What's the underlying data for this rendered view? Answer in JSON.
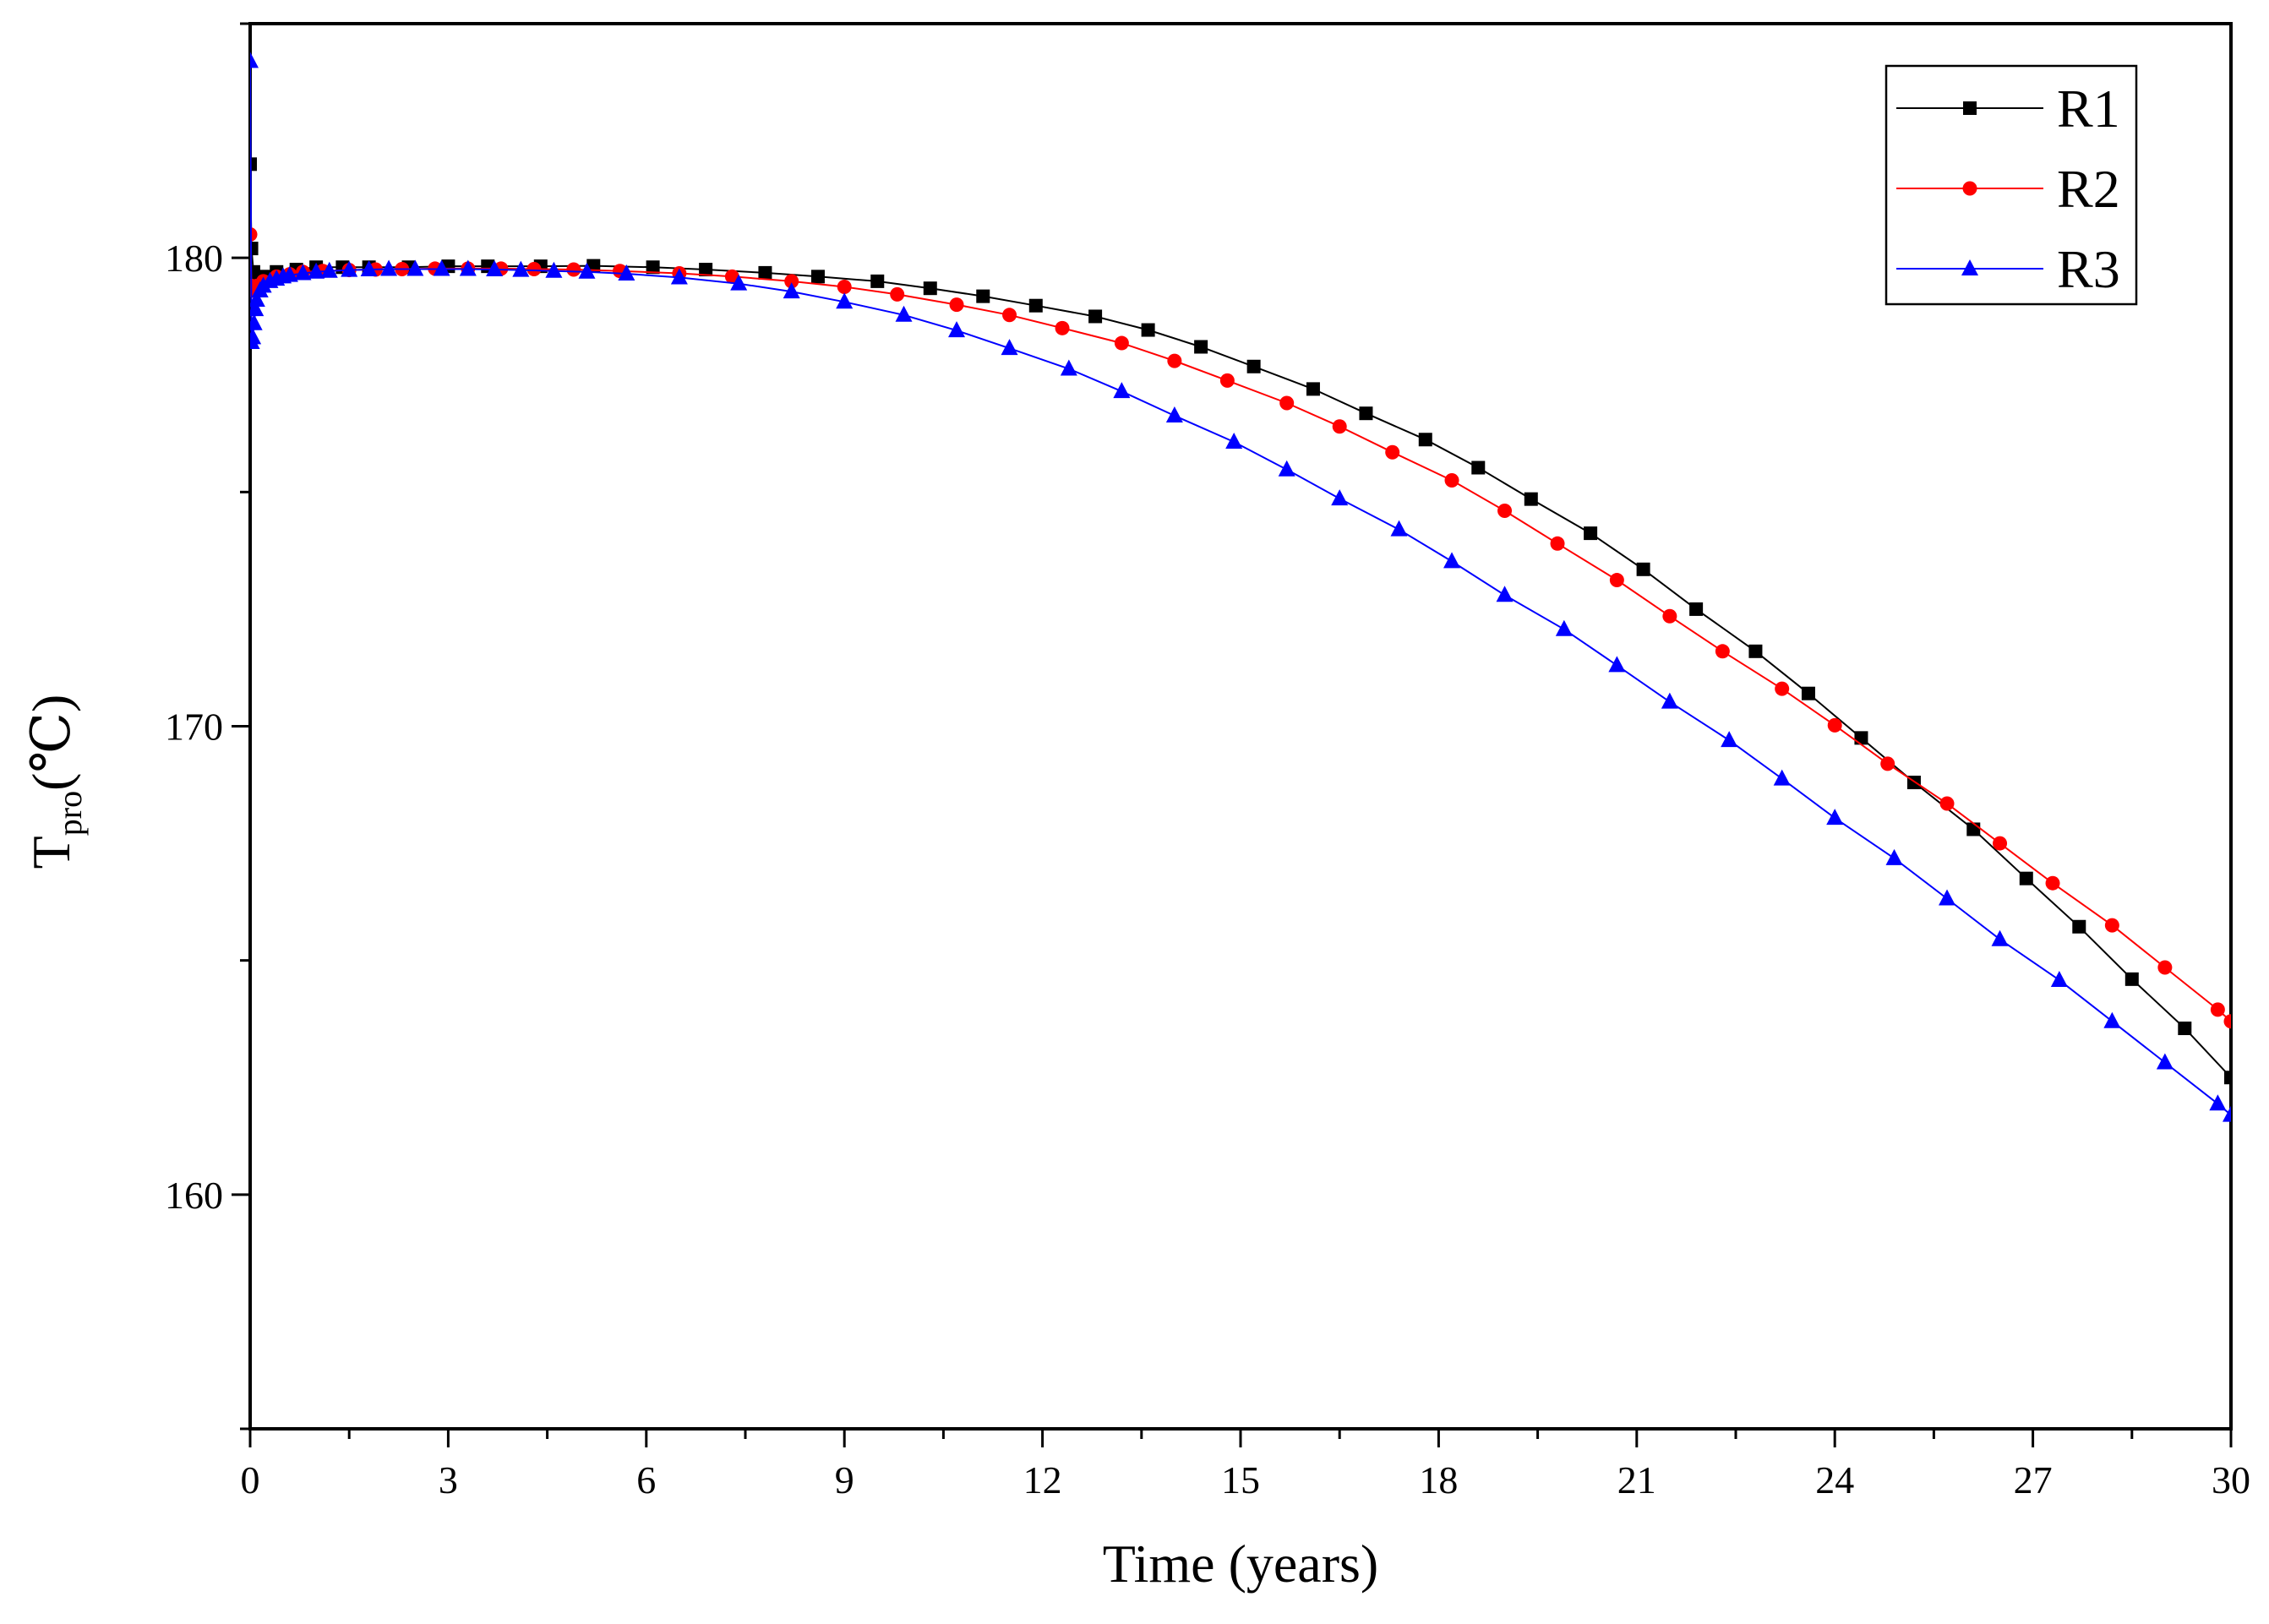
{
  "chart_data": {
    "type": "line",
    "title": "",
    "xlabel": "Time (years)",
    "ylabel_main": "T",
    "ylabel_sub": "pro",
    "ylabel_unit": "(℃)",
    "xlim": [
      0,
      30
    ],
    "ylim": [
      155,
      185
    ],
    "x_ticks": [
      0,
      3,
      6,
      9,
      12,
      15,
      18,
      21,
      24,
      27,
      30
    ],
    "y_ticks": [
      160,
      170,
      180
    ],
    "legend_position": "top-right",
    "series": [
      {
        "name": "R1",
        "color": "#000000",
        "marker": "square",
        "x": [
          0,
          0.02,
          0.05,
          0.1,
          0.2,
          0.4,
          0.7,
          1.0,
          1.4,
          1.8,
          2.4,
          3.0,
          3.6,
          4.4,
          5.2,
          6.1,
          6.9,
          7.8,
          8.6,
          9.5,
          10.3,
          11.1,
          11.9,
          12.8,
          13.6,
          14.4,
          15.2,
          16.1,
          16.9,
          17.8,
          18.6,
          19.4,
          20.3,
          21.1,
          21.9,
          22.8,
          23.6,
          24.4,
          25.2,
          26.1,
          26.9,
          27.7,
          28.5,
          29.3,
          30.0
        ],
        "y": [
          182.0,
          180.2,
          179.7,
          179.5,
          179.6,
          179.7,
          179.75,
          179.8,
          179.8,
          179.8,
          179.8,
          179.82,
          179.82,
          179.82,
          179.83,
          179.8,
          179.75,
          179.68,
          179.6,
          179.5,
          179.35,
          179.18,
          178.98,
          178.75,
          178.46,
          178.1,
          177.68,
          177.2,
          176.68,
          176.12,
          175.52,
          174.85,
          174.12,
          173.35,
          172.5,
          171.6,
          170.7,
          169.75,
          168.8,
          167.8,
          166.75,
          165.72,
          164.6,
          163.55,
          162.5
        ]
      },
      {
        "name": "R2",
        "color": "#ff0000",
        "marker": "circle",
        "x": [
          0,
          0.02,
          0.05,
          0.1,
          0.2,
          0.4,
          0.6,
          0.8,
          1.1,
          1.5,
          1.9,
          2.3,
          2.8,
          3.3,
          3.8,
          4.3,
          4.9,
          5.6,
          6.5,
          7.3,
          8.2,
          9.0,
          9.8,
          10.7,
          11.5,
          12.3,
          13.2,
          14.0,
          14.8,
          15.7,
          16.5,
          17.3,
          18.2,
          19.0,
          19.8,
          20.7,
          21.5,
          22.3,
          23.2,
          24.0,
          24.8,
          25.7,
          26.5,
          27.3,
          28.2,
          29.0,
          29.8,
          30.0
        ],
        "y": [
          180.5,
          179.4,
          179.3,
          179.4,
          179.5,
          179.6,
          179.65,
          179.7,
          179.72,
          179.74,
          179.75,
          179.76,
          179.77,
          179.77,
          179.77,
          179.76,
          179.75,
          179.72,
          179.67,
          179.6,
          179.5,
          179.38,
          179.22,
          179.0,
          178.78,
          178.5,
          178.18,
          177.8,
          177.38,
          176.9,
          176.4,
          175.85,
          175.25,
          174.6,
          173.9,
          173.12,
          172.35,
          171.6,
          170.8,
          170.02,
          169.2,
          168.35,
          167.5,
          166.65,
          165.75,
          164.85,
          163.95,
          163.7
        ]
      },
      {
        "name": "R3",
        "color": "#0000ff",
        "marker": "triangle",
        "x": [
          0,
          0.02,
          0.04,
          0.06,
          0.08,
          0.1,
          0.15,
          0.2,
          0.3,
          0.4,
          0.5,
          0.6,
          0.8,
          1.0,
          1.2,
          1.5,
          1.8,
          2.1,
          2.5,
          2.9,
          3.3,
          3.7,
          4.1,
          4.6,
          5.1,
          5.7,
          6.5,
          7.4,
          8.2,
          9.0,
          9.9,
          10.7,
          11.5,
          12.4,
          13.2,
          14.0,
          14.9,
          15.7,
          16.5,
          17.4,
          18.2,
          19.0,
          19.9,
          20.7,
          21.5,
          22.4,
          23.2,
          24.0,
          24.9,
          25.7,
          26.5,
          27.4,
          28.2,
          29.0,
          29.8,
          30.0
        ],
        "y": [
          184.2,
          178.2,
          178.3,
          178.6,
          178.9,
          179.1,
          179.3,
          179.4,
          179.5,
          179.55,
          179.6,
          179.63,
          179.67,
          179.7,
          179.72,
          179.74,
          179.75,
          179.76,
          179.76,
          179.76,
          179.76,
          179.75,
          179.74,
          179.72,
          179.7,
          179.66,
          179.58,
          179.45,
          179.28,
          179.06,
          178.78,
          178.45,
          178.07,
          177.63,
          177.15,
          176.63,
          176.07,
          175.48,
          174.86,
          174.2,
          173.52,
          172.8,
          172.07,
          171.3,
          170.52,
          169.7,
          168.88,
          168.04,
          167.18,
          166.32,
          165.45,
          164.58,
          163.7,
          162.82,
          161.94,
          161.7
        ]
      }
    ]
  }
}
